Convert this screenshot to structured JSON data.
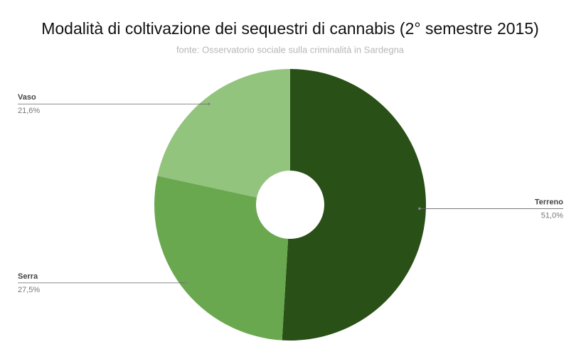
{
  "chart_data": {
    "type": "pie",
    "title": "Modalità di coltivazione dei sequestri di cannabis (2° semestre  2015)",
    "subtitle": "fonte: Osservatorio sociale sulla criminalità in Sardegna",
    "categories": [
      "Terreno",
      "Serra",
      "Vaso"
    ],
    "values": [
      51.0,
      27.5,
      21.6
    ],
    "value_labels": [
      "51,0%",
      "27,5%",
      "21,6%"
    ],
    "colors": [
      "#295016",
      "#6aa84f",
      "#93c47d"
    ]
  }
}
